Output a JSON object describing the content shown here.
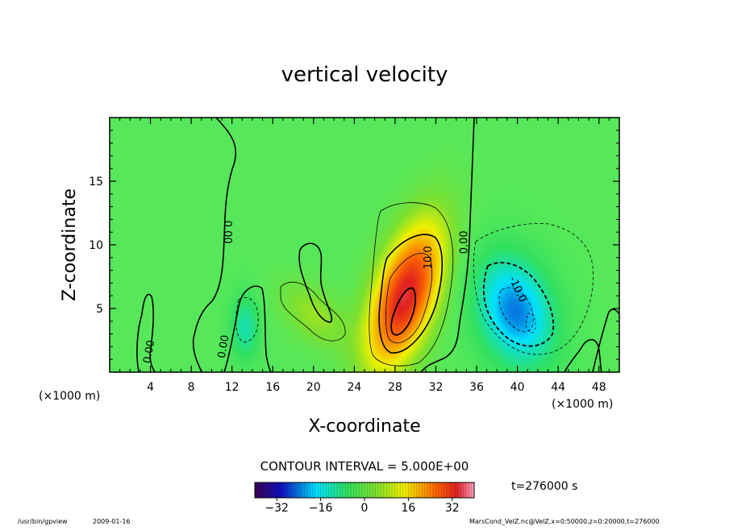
{
  "chart_data": {
    "type": "heatmap",
    "title": "vertical velocity",
    "xlabel": "X-coordinate",
    "ylabel": "Z-coordinate",
    "x_unit_left": "(×1000 m)",
    "x_unit_right": "(×1000 m)",
    "xlim": [
      0,
      50
    ],
    "ylim": [
      0,
      20
    ],
    "xticks": [
      4,
      8,
      12,
      16,
      20,
      24,
      28,
      32,
      36,
      40,
      44,
      48
    ],
    "yticks": [
      5,
      10,
      15
    ],
    "contour_interval_text": "CONTOUR INTERVAL = 5.000E+00",
    "time_text": "t=276000 s",
    "colorbar": {
      "min": -40,
      "max": 40,
      "ticks": [
        -32,
        -16,
        0,
        16,
        32
      ]
    },
    "contour_labels": [
      {
        "text": "0.00",
        "x": 11.5,
        "y": 11.0,
        "rotate": 90
      },
      {
        "text": "0.00",
        "x": 3.9,
        "y": 1.6,
        "rotate": -80
      },
      {
        "text": "0.00",
        "x": 11.2,
        "y": 2.0,
        "rotate": -80
      },
      {
        "text": "10.0",
        "x": 31.3,
        "y": 9.0,
        "rotate": -90
      },
      {
        "text": "0.00",
        "x": 34.8,
        "y": 10.2,
        "rotate": -90
      },
      {
        "text": "-10.0",
        "x": 40.0,
        "y": 6.5,
        "rotate": 65
      }
    ],
    "features": [
      {
        "sign": "positive",
        "peak": 35,
        "x": 29,
        "y": 6,
        "sx": 2.2,
        "sy": 4.0,
        "tilt": -0.35
      },
      {
        "sign": "negative",
        "peak": -24,
        "x": 39.8,
        "y": 4.8,
        "sx": 2.6,
        "sy": 3.0,
        "tilt": 0.2
      },
      {
        "sign": "positive",
        "peak": 8,
        "x": 20,
        "y": 4.5,
        "sx": 2.0,
        "sy": 1.8,
        "tilt": 0.6
      },
      {
        "sign": "negative",
        "peak": -12,
        "x": 13.3,
        "y": 3.5,
        "sx": 1.0,
        "sy": 1.8,
        "tilt": 0
      }
    ]
  },
  "footer": {
    "left_path": "/usr/bin/gpview",
    "left_date": "2009-01-16",
    "right": "MarsCond_VelZ.nc@VelZ,x=0:50000,z=0:20000,t=276000"
  }
}
